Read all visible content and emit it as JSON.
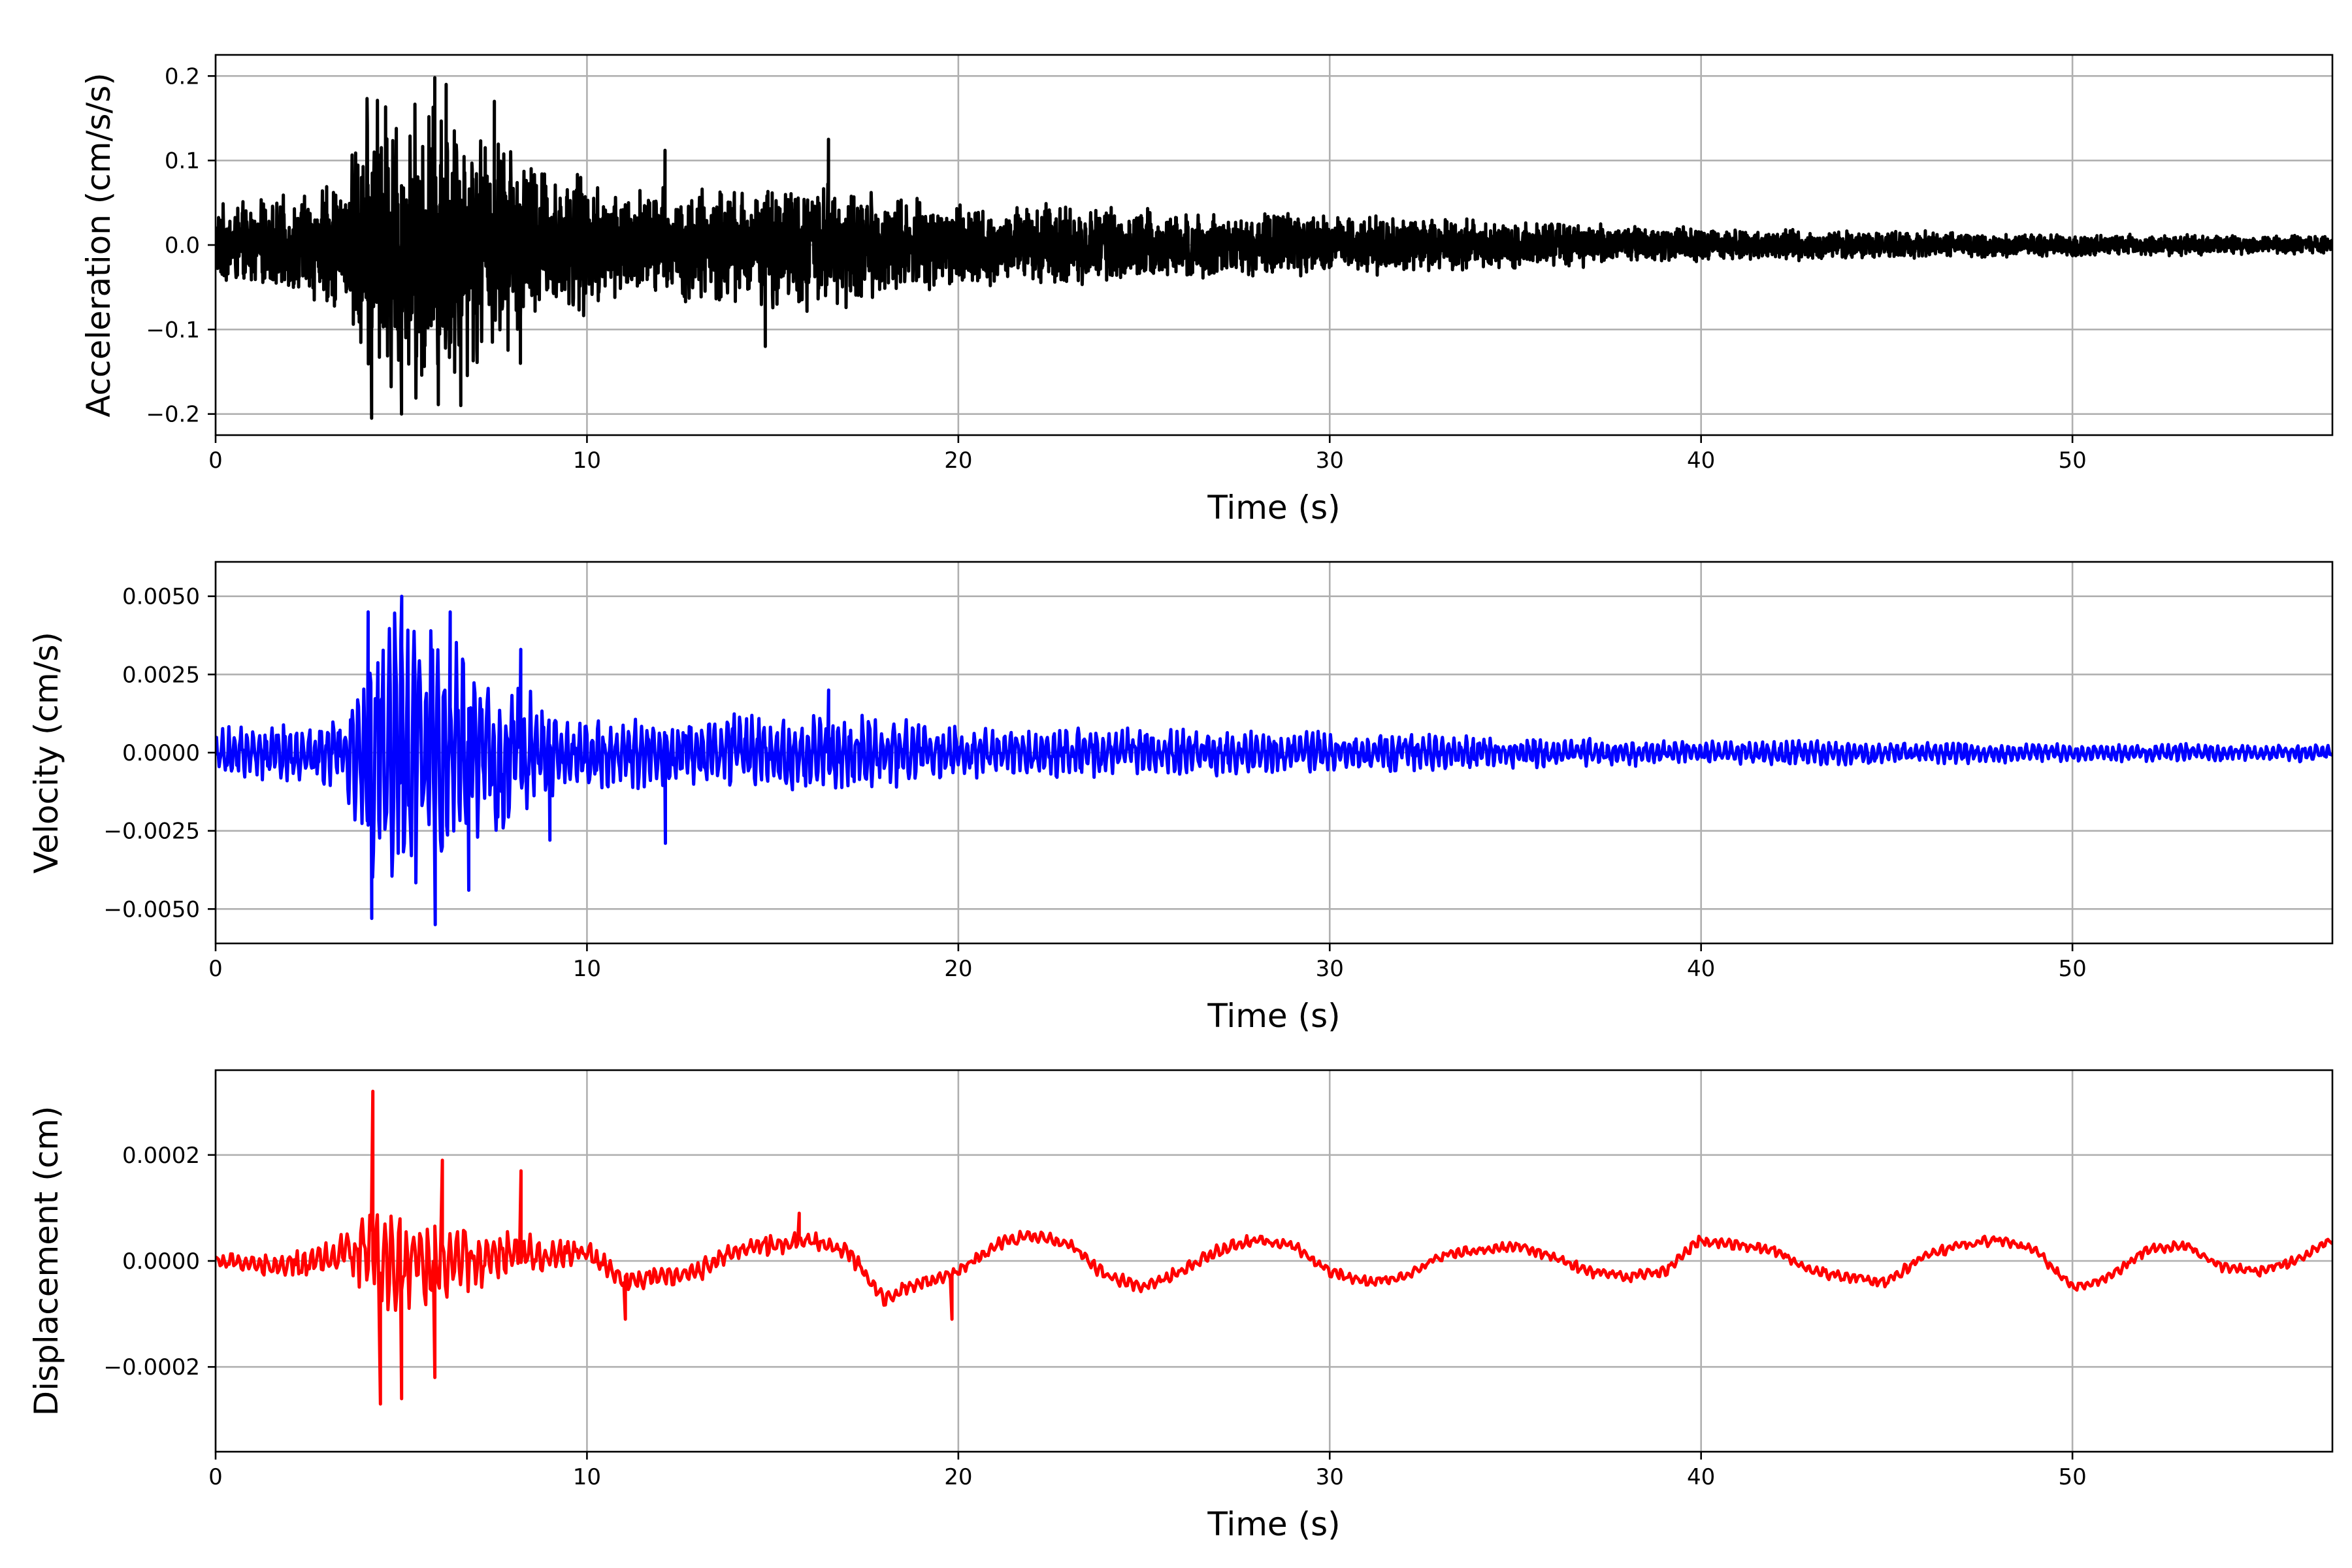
{
  "chart_data": [
    {
      "type": "line",
      "xlabel": "Time (s)",
      "ylabel": "Acceleration (cm/s/s)",
      "xlim": [
        0,
        57
      ],
      "ylim": [
        -0.225,
        0.225
      ],
      "xticks": [
        0,
        10,
        20,
        30,
        40,
        50
      ],
      "xtick_labels": [
        "0",
        "10",
        "20",
        "30",
        "40",
        "50"
      ],
      "yticks": [
        -0.2,
        -0.1,
        0.0,
        0.1,
        0.2
      ],
      "ytick_labels": [
        "−0.2",
        "−0.1",
        "0.0",
        "0.1",
        "0.2"
      ],
      "grid": true,
      "color": "#000000",
      "envelope": [
        [
          0,
          0.05
        ],
        [
          2,
          0.06
        ],
        [
          3.5,
          0.09
        ],
        [
          4.2,
          0.2
        ],
        [
          5,
          0.19
        ],
        [
          6,
          0.2
        ],
        [
          7,
          0.16
        ],
        [
          8,
          0.13
        ],
        [
          9,
          0.1
        ],
        [
          10,
          0.085
        ],
        [
          12,
          0.075
        ],
        [
          14,
          0.075
        ],
        [
          16,
          0.085
        ],
        [
          18,
          0.065
        ],
        [
          20,
          0.055
        ],
        [
          25,
          0.045
        ],
        [
          30,
          0.04
        ],
        [
          35,
          0.03
        ],
        [
          40,
          0.022
        ],
        [
          45,
          0.018
        ],
        [
          50,
          0.014
        ],
        [
          57,
          0.012
        ]
      ],
      "peaks": [
        [
          4.2,
          -0.205
        ],
        [
          5.0,
          -0.2
        ],
        [
          5.9,
          0.198
        ],
        [
          6.2,
          0.19
        ],
        [
          6.6,
          -0.19
        ],
        [
          7.5,
          0.17
        ],
        [
          8.2,
          -0.14
        ],
        [
          16.5,
          0.125
        ],
        [
          14.8,
          -0.12
        ],
        [
          12.1,
          0.112
        ]
      ]
    },
    {
      "type": "line",
      "xlabel": "Time (s)",
      "ylabel": "Velocity (cm/s)",
      "xlim": [
        0,
        57
      ],
      "ylim": [
        -0.0061,
        0.0061
      ],
      "xticks": [
        0,
        10,
        20,
        30,
        40,
        50
      ],
      "xtick_labels": [
        "0",
        "10",
        "20",
        "30",
        "40",
        "50"
      ],
      "yticks": [
        -0.005,
        -0.0025,
        0.0,
        0.0025,
        0.005
      ],
      "ytick_labels": [
        "−0.0050",
        "−0.0025",
        "0.0000",
        "0.0025",
        "0.0050"
      ],
      "grid": true,
      "color": "#0000ff",
      "envelope": [
        [
          0,
          0.0008
        ],
        [
          3.5,
          0.0012
        ],
        [
          4.0,
          0.004
        ],
        [
          5,
          0.0048
        ],
        [
          6,
          0.0045
        ],
        [
          7,
          0.0032
        ],
        [
          8,
          0.0025
        ],
        [
          9,
          0.0015
        ],
        [
          10,
          0.0012
        ],
        [
          12,
          0.0012
        ],
        [
          15,
          0.0013
        ],
        [
          17,
          0.0013
        ],
        [
          20,
          0.0009
        ],
        [
          25,
          0.0008
        ],
        [
          30,
          0.0007
        ],
        [
          35,
          0.0005
        ],
        [
          40,
          0.0004
        ],
        [
          45,
          0.0004
        ],
        [
          50,
          0.0003
        ],
        [
          57,
          0.0003
        ]
      ],
      "peaks": [
        [
          4.1,
          0.0045
        ],
        [
          4.2,
          -0.0053
        ],
        [
          5.0,
          0.005
        ],
        [
          5.9,
          -0.0055
        ],
        [
          6.3,
          0.0045
        ],
        [
          6.8,
          -0.0044
        ],
        [
          8.2,
          0.0033
        ],
        [
          9.0,
          -0.0028
        ],
        [
          12.1,
          -0.0029
        ],
        [
          16.5,
          0.002
        ]
      ]
    },
    {
      "type": "line",
      "xlabel": "Time (s)",
      "ylabel": "Displacement (cm)",
      "xlim": [
        0,
        57
      ],
      "ylim": [
        -0.00036,
        0.00036
      ],
      "xticks": [
        0,
        10,
        20,
        30,
        40,
        50
      ],
      "xtick_labels": [
        "0",
        "10",
        "20",
        "30",
        "40",
        "50"
      ],
      "yticks": [
        -0.0002,
        0.0,
        0.0002
      ],
      "ytick_labels": [
        "−0.0002",
        "0.0000",
        "0.0002"
      ],
      "grid": true,
      "color": "#ff0000",
      "trend": [
        [
          0,
          0
        ],
        [
          2,
          -1e-05
        ],
        [
          3,
          1e-05
        ],
        [
          4,
          3e-05
        ],
        [
          5,
          0
        ],
        [
          6,
          0
        ],
        [
          7,
          0
        ],
        [
          8,
          2e-05
        ],
        [
          9,
          1e-05
        ],
        [
          10,
          2e-05
        ],
        [
          11,
          -4e-05
        ],
        [
          12,
          -3e-05
        ],
        [
          13,
          -2e-05
        ],
        [
          14,
          2e-05
        ],
        [
          15,
          3e-05
        ],
        [
          16,
          4e-05
        ],
        [
          17,
          2e-05
        ],
        [
          18,
          -7e-05
        ],
        [
          19,
          -4e-05
        ],
        [
          20,
          -2e-05
        ],
        [
          21,
          3e-05
        ],
        [
          22,
          5e-05
        ],
        [
          23,
          3e-05
        ],
        [
          24,
          -3e-05
        ],
        [
          25,
          -5e-05
        ],
        [
          26,
          -2e-05
        ],
        [
          27,
          2e-05
        ],
        [
          28,
          4e-05
        ],
        [
          29,
          3e-05
        ],
        [
          30,
          -2e-05
        ],
        [
          31,
          -4e-05
        ],
        [
          32,
          -3e-05
        ],
        [
          33,
          1e-05
        ],
        [
          34,
          2e-05
        ],
        [
          35,
          3e-05
        ],
        [
          36,
          1e-05
        ],
        [
          37,
          -2e-05
        ],
        [
          38,
          -3e-05
        ],
        [
          39,
          -2e-05
        ],
        [
          40,
          4e-05
        ],
        [
          41,
          3e-05
        ],
        [
          42,
          2e-05
        ],
        [
          43,
          -2e-05
        ],
        [
          44,
          -3e-05
        ],
        [
          45,
          -4e-05
        ],
        [
          46,
          1e-05
        ],
        [
          47,
          3e-05
        ],
        [
          48,
          4e-05
        ],
        [
          49,
          2e-05
        ],
        [
          50,
          -5e-05
        ],
        [
          51,
          -3e-05
        ],
        [
          52,
          2e-05
        ],
        [
          53,
          3e-05
        ],
        [
          54,
          -1e-05
        ],
        [
          55,
          -2e-05
        ],
        [
          56,
          0
        ],
        [
          57,
          4e-05
        ]
      ],
      "noise": [
        [
          0,
          1.5e-05
        ],
        [
          3.5,
          4e-05
        ],
        [
          4.2,
          0.00012
        ],
        [
          6,
          0.0001
        ],
        [
          7,
          6e-05
        ],
        [
          8,
          4e-05
        ],
        [
          10,
          2.5e-05
        ],
        [
          15,
          2e-05
        ],
        [
          20,
          1.5e-05
        ],
        [
          30,
          1.2e-05
        ],
        [
          57,
          1e-05
        ]
      ],
      "peaks": [
        [
          4.2,
          0.00032
        ],
        [
          4.4,
          -0.00027
        ],
        [
          5.0,
          -0.00026
        ],
        [
          6.1,
          0.00019
        ],
        [
          5.9,
          -0.00022
        ],
        [
          8.2,
          0.00017
        ],
        [
          11.0,
          -0.00011
        ],
        [
          19.8,
          -0.00011
        ],
        [
          15.7,
          9e-05
        ]
      ]
    }
  ]
}
